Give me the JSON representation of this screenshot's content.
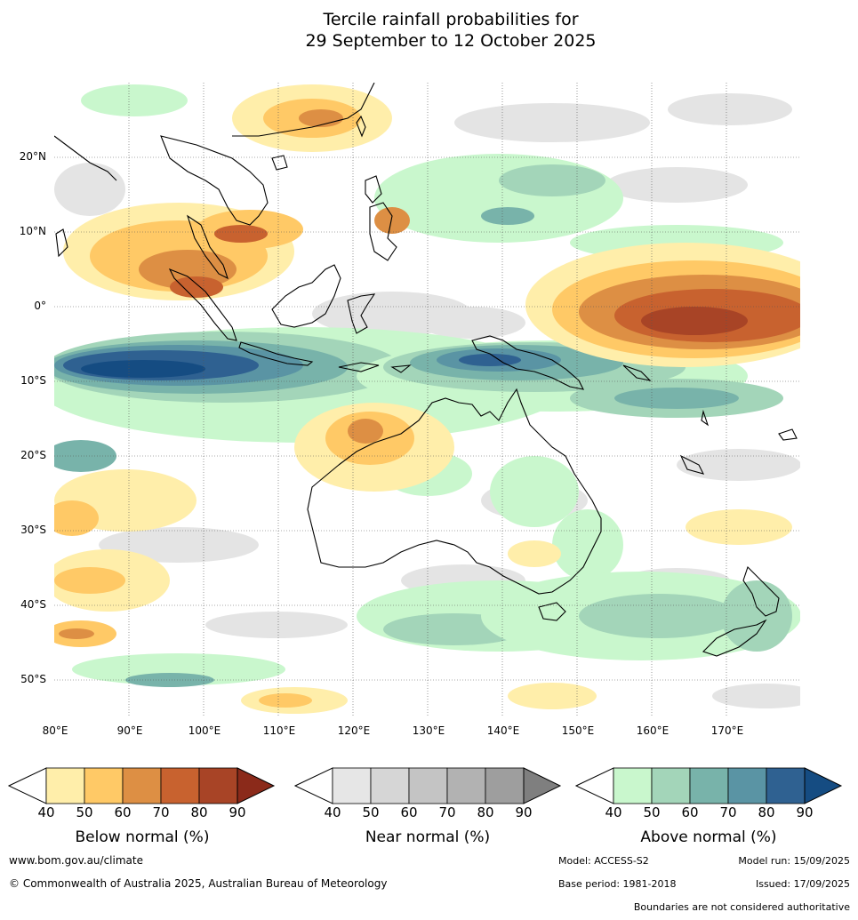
{
  "title_line1": "Tercile rainfall probabilities for",
  "title_line2": "29 September to 12 October 2025",
  "lat_labels": [
    "20°N",
    "10°N",
    "0°",
    "10°S",
    "20°S",
    "30°S",
    "40°S",
    "50°S"
  ],
  "lon_labels": [
    "80°E",
    "90°E",
    "100°E",
    "110°E",
    "120°E",
    "130°E",
    "140°E",
    "150°E",
    "160°E",
    "170°E"
  ],
  "colorbars": {
    "below": {
      "title": "Below normal (%)",
      "ticks": [
        "40",
        "50",
        "60",
        "70",
        "80",
        "90"
      ],
      "colors": [
        "#ffeeaa",
        "#ffc966",
        "#dd8f44",
        "#c8622f",
        "#a84426",
        "#8b2a1a"
      ]
    },
    "near": {
      "title": "Near normal (%)",
      "ticks": [
        "40",
        "50",
        "60",
        "70",
        "80",
        "90"
      ],
      "colors": [
        "#e6e6e6",
        "#d6d6d6",
        "#c4c4c4",
        "#b2b2b2",
        "#9e9e9e",
        "#7f7f7f"
      ]
    },
    "above": {
      "title": "Above normal (%)",
      "ticks": [
        "40",
        "50",
        "60",
        "70",
        "80",
        "90"
      ],
      "colors": [
        "#c9f7cd",
        "#a3d5b9",
        "#78b3aa",
        "#5a94a4",
        "#2f6191",
        "#154c82"
      ]
    }
  },
  "footer": {
    "url": "www.bom.gov.au/climate",
    "copyright": "© Commonwealth of Australia 2025, Australian Bureau of Meteorology",
    "model": "Model: ACCESS-S2",
    "model_run": "Model run: 15/09/2025",
    "base_period": "Base period: 1981-2018",
    "issued": "Issued: 17/09/2025",
    "disclaimer": "Boundaries are not considered authoritative"
  }
}
